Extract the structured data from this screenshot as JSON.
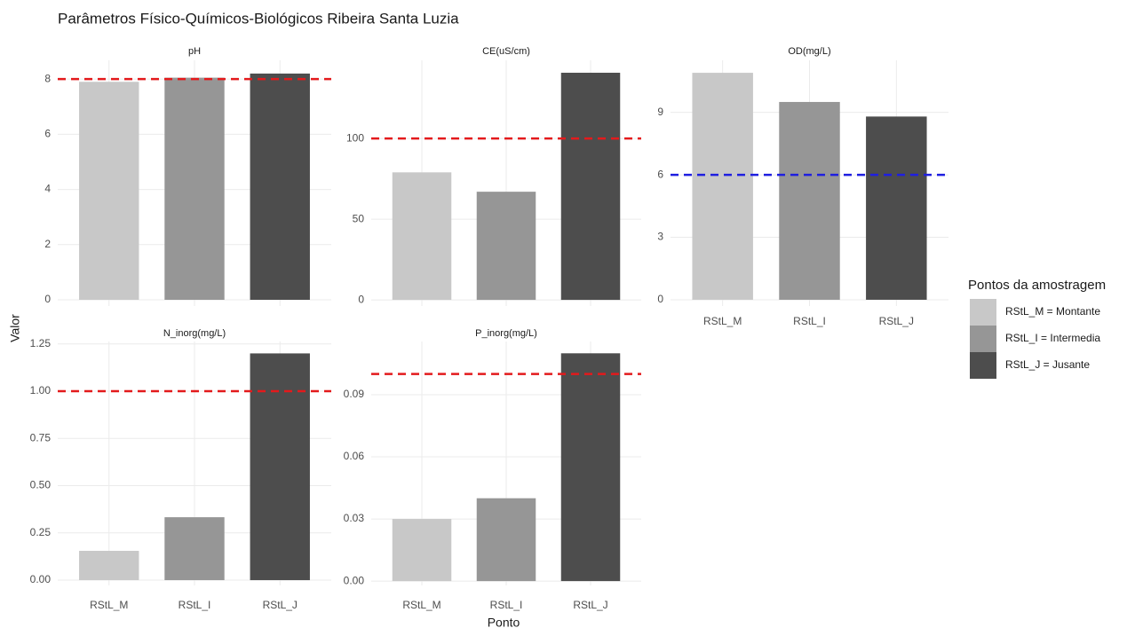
{
  "title": "Parâmetros Físico-Químicos-Biológicos  Ribeira Santa Luzia",
  "x_label": "Ponto",
  "y_label": "Valor",
  "categories": [
    "RStL_M",
    "RStL_I",
    "RStL_J"
  ],
  "legend": {
    "title": "Pontos da amostragem",
    "position": "right",
    "labels": [
      "RStL_M = Montante",
      "RStL_I = Intermedia",
      "RStL_J = Jusante"
    ],
    "colors": [
      "#c8c8c8",
      "#969696",
      "#4d4d4d"
    ]
  },
  "chart_data": [
    {
      "type": "bar",
      "title": "pH",
      "values": [
        7.9,
        8.05,
        8.2
      ],
      "ylim": [
        -0.225,
        8.68
      ],
      "yticks": [
        0,
        2,
        4,
        6,
        8
      ],
      "grid": true,
      "reference_line": {
        "value": 8,
        "color": "#e31a1c"
      }
    },
    {
      "type": "bar",
      "title": "CE(uS/cm)",
      "values": [
        79,
        67,
        140.7
      ],
      "ylim": [
        -3.8,
        148.4
      ],
      "yticks": [
        0,
        50,
        100
      ],
      "grid": true,
      "reference_line": {
        "value": 100,
        "color": "#e31a1c"
      }
    },
    {
      "type": "bar",
      "title": "OD(mg/L)",
      "values": [
        10.9,
        9.5,
        8.8
      ],
      "ylim": [
        -0.3,
        11.5
      ],
      "yticks": [
        0,
        3,
        6,
        9
      ],
      "grid": true,
      "reference_line": {
        "value": 6,
        "color": "#1f1fe0"
      }
    },
    {
      "type": "bar",
      "title": "N_inorg(mg/L)",
      "values": [
        0.155,
        0.333,
        1.2
      ],
      "ylim": [
        -0.028,
        1.263
      ],
      "yticks": [
        {
          "value": 0,
          "label": "0.00"
        },
        {
          "value": 0.25,
          "label": "0.25"
        },
        {
          "value": 0.5,
          "label": "0.50"
        },
        {
          "value": 0.75,
          "label": "0.75"
        },
        {
          "value": 1,
          "label": "1.00"
        },
        {
          "value": 1.25,
          "label": "1.25"
        }
      ],
      "grid": true,
      "reference_line": {
        "value": 1,
        "color": "#e31a1c"
      }
    },
    {
      "type": "bar",
      "title": "P_inorg(mg/L)",
      "values": [
        0.03,
        0.04,
        0.11
      ],
      "ylim": [
        -0.0021,
        0.1157
      ],
      "yticks": [
        {
          "value": 0,
          "label": "0.00"
        },
        {
          "value": 0.03,
          "label": "0.03"
        },
        {
          "value": 0.06,
          "label": "0.06"
        },
        {
          "value": 0.09,
          "label": "0.09"
        }
      ],
      "grid": true,
      "reference_line": {
        "value": 0.1,
        "color": "#e31a1c"
      }
    }
  ]
}
